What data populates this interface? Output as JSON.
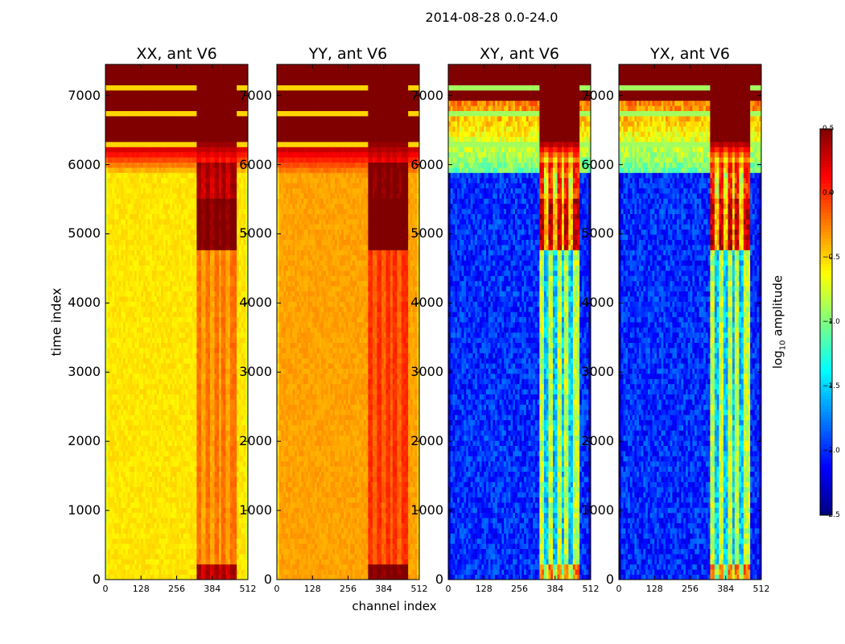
{
  "chart_data": {
    "type": "heatmap",
    "suptitle": "2014-08-28 0.0-24.0",
    "panels": [
      {
        "title": "XX, ant V6",
        "colormap": "jet",
        "base_level": -0.55
      },
      {
        "title": "YY, ant V6",
        "colormap": "jet",
        "base_level": -0.35
      },
      {
        "title": "XY, ant V6",
        "colormap": "jet",
        "base_level": -2.0
      },
      {
        "title": "YX, ant V6",
        "colormap": "jet",
        "base_level": -2.0
      }
    ],
    "xlabel": "channel index",
    "ylabel": "time index",
    "xlim": [
      0,
      512
    ],
    "ylim": [
      0,
      7450
    ],
    "xticks": [
      0,
      128,
      256,
      384,
      512
    ],
    "xtick_labels": [
      "0",
      "128",
      "256",
      "384",
      "512"
    ],
    "yticks": [
      0,
      1000,
      2000,
      3000,
      4000,
      5000,
      6000,
      7000
    ],
    "ytick_labels": [
      "0",
      "1000",
      "2000",
      "3000",
      "4000",
      "5000",
      "6000",
      "7000"
    ],
    "colorbar": {
      "label_main": "log",
      "label_sub": "10",
      "label_rest": " amplitude",
      "range": [
        -2.5,
        0.5
      ],
      "ticks": [
        0.5,
        0.0,
        -0.5,
        -1.0,
        -1.5,
        -2.0,
        -2.5
      ],
      "tick_labels": [
        "0.5",
        "0.0",
        "−0.5",
        "−1.0",
        "−1.5",
        "−2.0",
        "−2.5"
      ]
    },
    "saturated_time_band": [
      6000,
      7450
    ],
    "bright_channel_band": [
      325,
      475
    ]
  }
}
